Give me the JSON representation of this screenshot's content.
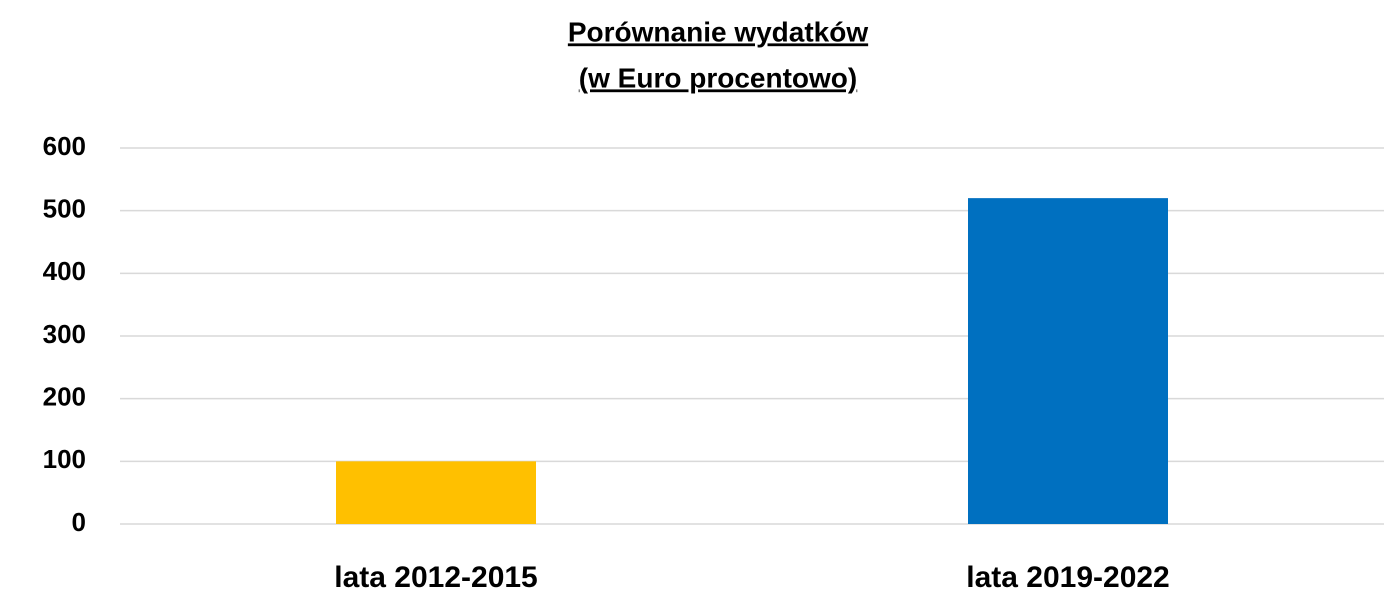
{
  "chart_data": {
    "type": "bar",
    "title": "Porównanie wydatków",
    "subtitle": "(w Euro procentowo)",
    "categories": [
      "lata 2012-2015",
      "lata 2019-2022"
    ],
    "values": [
      100,
      520
    ],
    "colors": [
      "#ffc000",
      "#0070c0"
    ],
    "ylim": [
      0,
      600
    ],
    "yticks": [
      0,
      100,
      200,
      300,
      400,
      500,
      600
    ],
    "grid": true
  }
}
